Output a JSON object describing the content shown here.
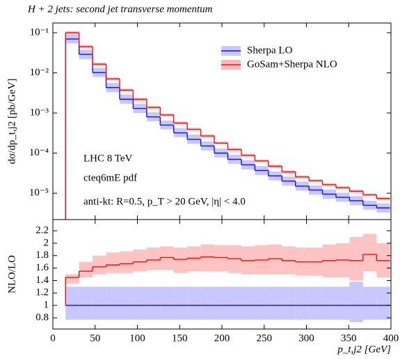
{
  "chart_data": [
    {
      "type": "histogram",
      "title": "H + 2 jets: second jet transverse momentum",
      "ylabel": "dσ/dp_t,j2 [pb/GeV]",
      "log_y": true,
      "bins": [
        15,
        31,
        47,
        63,
        79,
        95,
        111,
        127,
        143,
        159,
        175,
        191,
        207,
        223,
        239,
        255,
        271,
        287,
        303,
        319,
        335,
        351,
        367,
        383,
        399
      ],
      "xlim": [
        0,
        400
      ],
      "ylim": [
        2.2e-06,
        0.175
      ],
      "yticks": [
        {
          "value": 1e-05,
          "label": "10⁻⁵"
        },
        {
          "value": 0.0001,
          "label": "10⁻⁴"
        },
        {
          "value": 0.001,
          "label": "10⁻³"
        },
        {
          "value": 0.01,
          "label": "10⁻²"
        },
        {
          "value": 0.1,
          "label": "10⁻¹"
        }
      ],
      "legend": "upper right",
      "annotations": [
        "LHC 8 TeV",
        "cteq6mE pdf",
        "anti-kt: R=0.5, p_T > 20 GeV, |η| < 4.0"
      ],
      "series": [
        {
          "name": "Sherpa LO",
          "color": "#1010e0",
          "band_color": "#c8c8ff",
          "values": [
            0.07,
            0.029,
            0.0102,
            0.0043,
            0.0022,
            0.0013,
            0.0008,
            0.0005,
            0.00032,
            0.00022,
            0.00015,
            0.0001,
            7e-05,
            5.1e-05,
            3.7e-05,
            2.7e-05,
            2e-05,
            1.5e-05,
            1.2e-05,
            9.5e-06,
            7.9e-06,
            6.5e-06,
            5e-06,
            4.3e-06
          ],
          "band_low": [
            0.054,
            0.022,
            0.0079,
            0.0033,
            0.0017,
            0.001,
            0.00062,
            0.00039,
            0.00025,
            0.00017,
            0.000116,
            7.7e-05,
            5.4e-05,
            3.9e-05,
            2.85e-05,
            2.08e-05,
            1.54e-05,
            1.16e-05,
            9.2e-06,
            7.3e-06,
            6.1e-06,
            5e-06,
            3.9e-06,
            3.3e-06
          ],
          "band_high": [
            0.091,
            0.038,
            0.0133,
            0.0056,
            0.0029,
            0.0017,
            0.00104,
            0.00065,
            0.00042,
            0.00029,
            0.000195,
            0.00013,
            9.1e-05,
            6.6e-05,
            4.8e-05,
            3.51e-05,
            2.6e-05,
            1.95e-05,
            1.56e-05,
            1.24e-05,
            1.03e-05,
            8.5e-06,
            6.5e-06,
            5.6e-06
          ]
        },
        {
          "name": "GoSam+Sherpa NLO",
          "color": "#ee1010",
          "band_color": "#ffb8b8",
          "values": [
            0.1,
            0.045,
            0.0165,
            0.0071,
            0.0037,
            0.0022,
            0.00138,
            0.00089,
            0.00056,
            0.00039,
            0.000267,
            0.000177,
            0.000123,
            8.8e-05,
            6.4e-05,
            4.7e-05,
            3.4e-05,
            2.55e-05,
            2.04e-05,
            1.63e-05,
            1.37e-05,
            1.12e-05,
            9.1e-06,
            7.4e-06
          ],
          "band_low": [
            0.092,
            0.041,
            0.0152,
            0.0065,
            0.0034,
            0.002,
            0.00127,
            0.00082,
            0.00052,
            0.00036,
            0.000246,
            0.000163,
            0.000113,
            8.1e-05,
            5.9e-05,
            4.32e-05,
            3.13e-05,
            2.35e-05,
            1.88e-05,
            1.5e-05,
            1.26e-05,
            1.03e-05,
            8.4e-06,
            6.8e-06
          ],
          "band_high": [
            0.11,
            0.05,
            0.0182,
            0.0078,
            0.0041,
            0.0024,
            0.00152,
            0.00098,
            0.00062,
            0.00043,
            0.000294,
            0.000195,
            0.000135,
            9.7e-05,
            7e-05,
            5.17e-05,
            3.74e-05,
            2.8e-05,
            2.24e-05,
            1.79e-05,
            1.51e-05,
            1.23e-05,
            1e-05,
            8.1e-06
          ]
        }
      ]
    },
    {
      "type": "histogram",
      "ylabel": "NLO/LO",
      "xlabel": "p_t,j2 [GeV]",
      "log_y": false,
      "bins": [
        15,
        31,
        47,
        63,
        79,
        95,
        111,
        127,
        143,
        159,
        175,
        191,
        207,
        223,
        239,
        255,
        271,
        287,
        303,
        319,
        335,
        351,
        367,
        383,
        399
      ],
      "xlim": [
        0,
        400
      ],
      "ylim": [
        0.62,
        2.38
      ],
      "xticks": [
        0,
        50,
        100,
        150,
        200,
        250,
        300,
        350,
        400
      ],
      "yticks": [
        0.8,
        1,
        1.2,
        1.4,
        1.6,
        1.8,
        2,
        2.2
      ],
      "series": [
        {
          "color": "#1010e0",
          "band_color": "#c8c8ff",
          "values": [
            1,
            1,
            1,
            1,
            1,
            1,
            1,
            1,
            1,
            1,
            1,
            1,
            1,
            1,
            1,
            1,
            1,
            1,
            1,
            1,
            1,
            1,
            1,
            1
          ],
          "band_low": [
            0.77,
            0.77,
            0.77,
            0.77,
            0.77,
            0.77,
            0.77,
            0.77,
            0.77,
            0.77,
            0.77,
            0.77,
            0.77,
            0.77,
            0.77,
            0.77,
            0.77,
            0.77,
            0.77,
            0.77,
            0.77,
            0.73,
            0.77,
            0.77
          ],
          "band_high": [
            1.3,
            1.3,
            1.3,
            1.3,
            1.3,
            1.3,
            1.3,
            1.3,
            1.3,
            1.3,
            1.3,
            1.3,
            1.3,
            1.3,
            1.3,
            1.3,
            1.3,
            1.3,
            1.3,
            1.3,
            1.3,
            1.38,
            1.3,
            1.3
          ]
        },
        {
          "color": "#ee1010",
          "band_color": "#ffb8b8",
          "values": [
            1.45,
            1.55,
            1.62,
            1.65,
            1.67,
            1.7,
            1.73,
            1.77,
            1.74,
            1.76,
            1.78,
            1.77,
            1.75,
            1.72,
            1.73,
            1.75,
            1.72,
            1.7,
            1.7,
            1.72,
            1.73,
            1.72,
            1.82,
            1.72
          ],
          "band_low": [
            1.35,
            1.45,
            1.5,
            1.52,
            1.52,
            1.55,
            1.57,
            1.57,
            1.52,
            1.55,
            1.55,
            1.55,
            1.52,
            1.5,
            1.5,
            1.5,
            1.5,
            1.48,
            1.48,
            1.45,
            1.45,
            1.4,
            1.55,
            1.45
          ],
          "band_high": [
            1.5,
            1.7,
            1.8,
            1.85,
            1.87,
            1.9,
            1.93,
            1.95,
            1.93,
            1.95,
            1.98,
            1.97,
            1.97,
            1.95,
            1.97,
            1.98,
            1.95,
            1.93,
            1.93,
            1.98,
            2,
            2.1,
            2.15,
            2
          ]
        }
      ]
    }
  ]
}
